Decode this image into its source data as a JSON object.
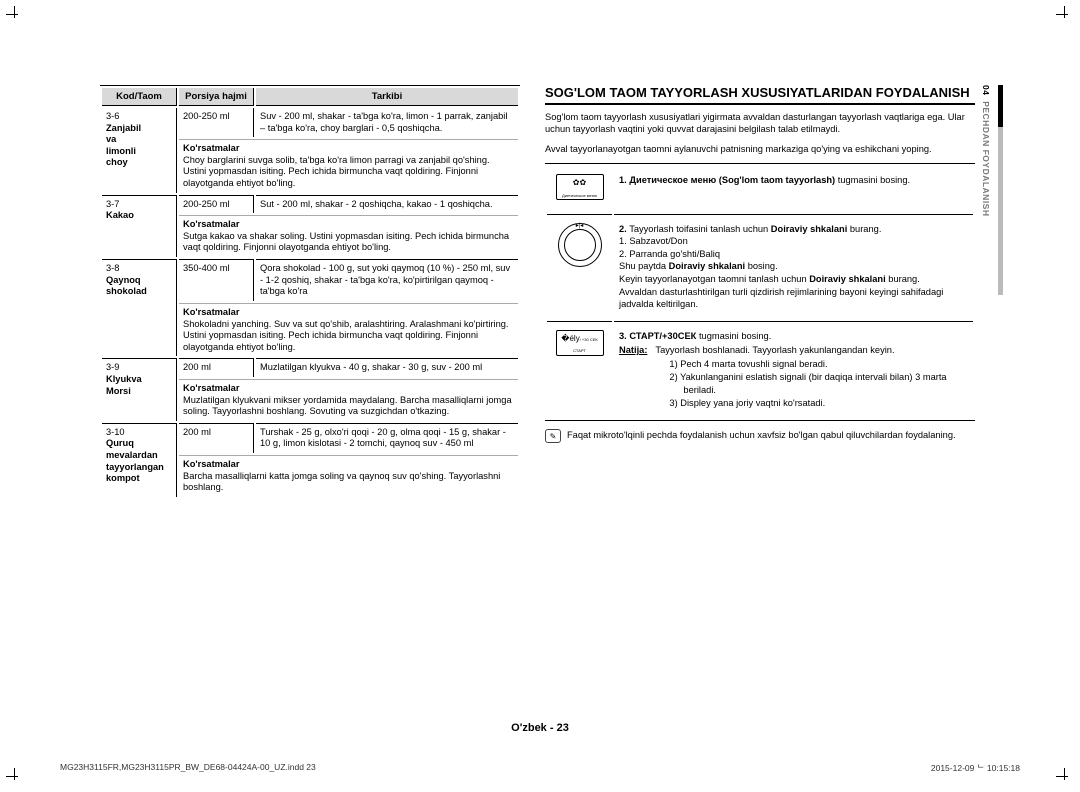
{
  "table": {
    "headers": [
      "Kod/Taom",
      "Porsiya hajmi",
      "Tarkibi"
    ],
    "instr_label": "Ko'rsatmalar",
    "rows": [
      {
        "code": "3-6",
        "name": "Zanjabil va limonli choy",
        "portion": "200-250 ml",
        "tarkib": "Suv - 200 ml, shakar - ta'bga ko'ra, limon - 1 parrak, zanjabil – ta'bga ko'ra, choy barglari - 0,5 qoshiqcha.",
        "instr": "Choy barglarini suvga solib, ta'bga ko'ra limon parragi va zanjabil qo'shing. Ustini yopmasdan isiting. Pech ichida birmuncha vaqt qoldiring. Finjonni olayotganda ehtiyot bo'ling."
      },
      {
        "code": "3-7",
        "name": "Kakao",
        "portion": "200-250 ml",
        "tarkib": "Sut - 200 ml, shakar - 2 qoshiqcha, kakao - 1 qoshiqcha.",
        "instr": "Sutga kakao va shakar soling. Ustini yopmasdan isiting. Pech ichida birmuncha vaqt qoldiring. Finjonni olayotganda ehtiyot bo'ling."
      },
      {
        "code": "3-8",
        "name": "Qaynoq shokolad",
        "portion": "350-400 ml",
        "tarkib": "Qora shokolad - 100 g, sut yoki qaymoq (10 %) - 250 ml, suv - 1-2 qoshiq, shakar - ta'bga ko'ra, ko'pirtirilgan qaymoq - ta'bga ko'ra",
        "instr": "Shokoladni yanching. Suv va sut qo'shib, aralashtiring. Aralashmani ko'pirtiring. Ustini yopmasdan isiting. Pech ichida birmuncha vaqt qoldiring. Finjonni olayotganda ehtiyot bo'ling."
      },
      {
        "code": "3-9",
        "name": "Klyukva Morsi",
        "portion": "200 ml",
        "tarkib": "Muzlatilgan klyukva - 40 g, shakar - 30 g, suv - 200 ml",
        "instr": "Muzlatilgan klyukvani mikser yordamida maydalang. Barcha masalliqlarni jomga soling. Tayyorlashni boshlang. Sovuting va suzgichdan o'tkazing."
      },
      {
        "code": "3-10",
        "name": "Quruq mevalardan tayyorlangan kompot",
        "portion": "200 ml",
        "tarkib": "Turshak - 25 g, olxo'ri qoqi - 20 g, olma qoqi - 15 g, shakar - 10 g, limon kislotasi - 2 tomchi, qaynoq suv - 450 ml",
        "instr": "Barcha masalliqlarni katta jomga soling va qaynoq suv qo'shing. Tayyorlashni boshlang."
      }
    ]
  },
  "right": {
    "title": "SOG'LOM TAOM TAYYORLASH XUSUSIYATLARIDAN FOYDALANISH",
    "intro1": "Sog'lom taom tayyorlash xususiyatlari yigirmata avvaldan dasturlangan tayyorlash vaqtlariga ega. Ular uchun tayyorlash vaqtini yoki quvvat darajasini belgilash talab etilmaydi.",
    "intro2": "Avval tayyorlanayotgan taomni aylanuvchi patnisning markaziga qo'ying va eshikchani yoping.",
    "steps": [
      {
        "n": "1.",
        "icon_label": "Диетическое меню",
        "bold": "Диетическое меню (Sog'lom taom tayyorlash)",
        "tail": " tugmasini bosing."
      },
      {
        "n": "2.",
        "dial": true,
        "line1_pre": "Tayyorlash toifasini tanlash uchun ",
        "line1_bold": "Doiraviy shkalani",
        "line1_post": " burang.",
        "opts": [
          "1. Sabzavot/Don",
          "2. Parranda go'shti/Baliq"
        ],
        "line2_pre": "Shu paytda ",
        "line2_bold": "Doiraviy shkalani",
        "line2_post": " bosing.",
        "line3_pre": "Keyin tayyorlanayotgan taomni tanlash uchun ",
        "line3_bold": "Doiraviy shkalani",
        "line3_post": " burang.",
        "line4": "Avvaldan dasturlashtirilgan turli qizdirish rejimlarining bayoni keyingi sahifadagi jadvalda keltirilgan."
      },
      {
        "n": "3.",
        "icon_label": "СТАРТ",
        "icon_sub": "/ +30 СЕК",
        "bold": "СТАРТ/+30СЕК",
        "tail": " tugmasini bosing.",
        "natija_label": "Natija:",
        "natija_text": "Tayyorlash boshlanadi. Tayyorlash yakunlangandan keyin.",
        "sub": [
          "1)  Pech 4 marta tovushli signal beradi.",
          "2)  Yakunlanganini eslatish signali (bir daqiqa intervali bilan) 3 marta beriladi.",
          "3)  Displey yana joriy vaqtni ko'rsatadi."
        ]
      }
    ],
    "note": "Faqat mikroto'lqinli pechda foydalanish uchun xavfsiz bo'lgan qabul qiluvchilardan foydalaning."
  },
  "sideTab": {
    "num": "04",
    "text": "PECHDAN FOYDALANISH"
  },
  "footer": "O'zbek - 23",
  "printLeft": "MG23H3115FR,MG23H3115PR_BW_DE68-04424A-00_UZ.indd   23",
  "printRight": "2015-12-09   ᄂ 10:15:18"
}
